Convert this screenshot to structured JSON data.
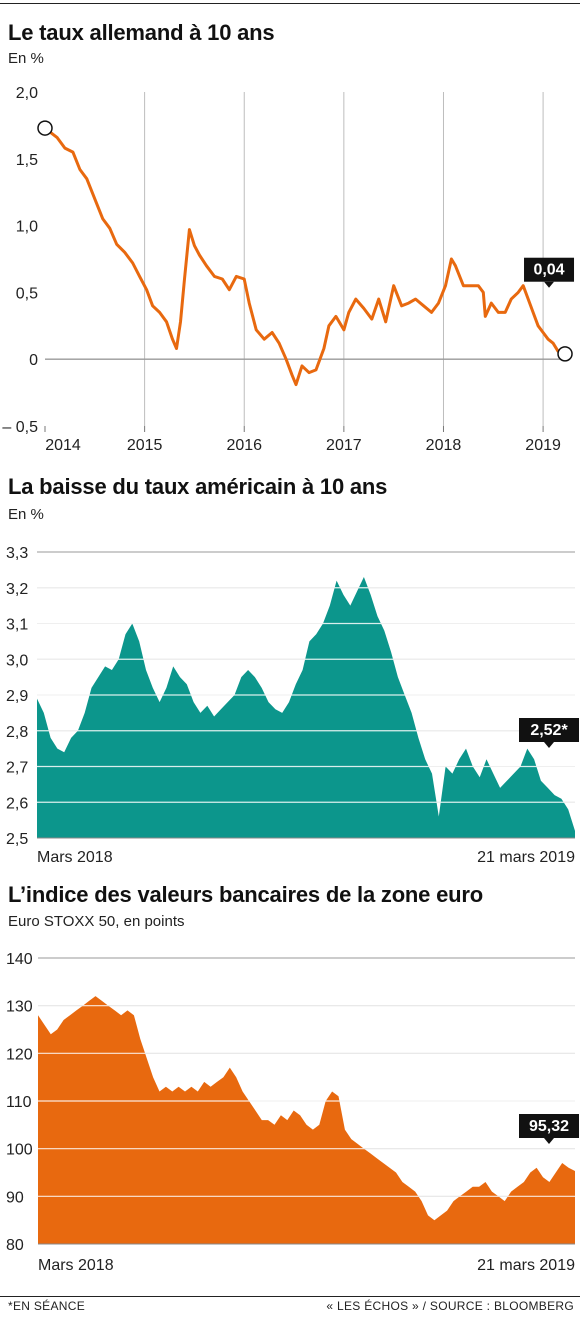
{
  "footer": {
    "note": "*EN SÉANCE",
    "source": "« LES ÉCHOS » / SOURCE : BLOOMBERG"
  },
  "colors": {
    "orange": "#e8690f",
    "teal": "#0c968c",
    "axis": "#999999",
    "grid": "#ffffff",
    "callout": "#111111"
  },
  "chart_data": [
    {
      "type": "line",
      "title": "Le taux allemand à 10 ans",
      "subtitle": "En %",
      "color": "#e8690f",
      "ylim": [
        -0.5,
        2.0
      ],
      "y_ticks": [
        2.0,
        1.5,
        1.0,
        0.5,
        0,
        -0.5
      ],
      "y_tick_labels": [
        "2,0",
        "1,5",
        "1,0",
        "0,5",
        "0",
        "– 0,5"
      ],
      "x_range": [
        2014.0,
        2019.25
      ],
      "x_ticks": [
        2014,
        2015,
        2016,
        2017,
        2018,
        2019
      ],
      "x_tick_labels": [
        "2014",
        "2015",
        "2016",
        "2017",
        "2018",
        "2019"
      ],
      "grid": "vertical lines at years, horizontal line at 0",
      "start_marker": true,
      "end_marker": true,
      "callout": "0,04",
      "points": [
        [
          2014.0,
          1.73
        ],
        [
          2014.05,
          1.7
        ],
        [
          2014.12,
          1.66
        ],
        [
          2014.2,
          1.58
        ],
        [
          2014.28,
          1.55
        ],
        [
          2014.35,
          1.42
        ],
        [
          2014.42,
          1.35
        ],
        [
          2014.5,
          1.2
        ],
        [
          2014.58,
          1.05
        ],
        [
          2014.65,
          0.98
        ],
        [
          2014.72,
          0.86
        ],
        [
          2014.8,
          0.8
        ],
        [
          2014.88,
          0.72
        ],
        [
          2014.95,
          0.62
        ],
        [
          2015.02,
          0.52
        ],
        [
          2015.08,
          0.4
        ],
        [
          2015.15,
          0.35
        ],
        [
          2015.22,
          0.28
        ],
        [
          2015.28,
          0.15
        ],
        [
          2015.32,
          0.08
        ],
        [
          2015.36,
          0.28
        ],
        [
          2015.4,
          0.6
        ],
        [
          2015.45,
          0.97
        ],
        [
          2015.5,
          0.85
        ],
        [
          2015.55,
          0.78
        ],
        [
          2015.62,
          0.7
        ],
        [
          2015.7,
          0.62
        ],
        [
          2015.78,
          0.6
        ],
        [
          2015.85,
          0.52
        ],
        [
          2015.92,
          0.62
        ],
        [
          2016.0,
          0.6
        ],
        [
          2016.05,
          0.42
        ],
        [
          2016.12,
          0.22
        ],
        [
          2016.2,
          0.15
        ],
        [
          2016.28,
          0.2
        ],
        [
          2016.35,
          0.12
        ],
        [
          2016.42,
          0.0
        ],
        [
          2016.48,
          -0.12
        ],
        [
          2016.52,
          -0.19
        ],
        [
          2016.58,
          -0.05
        ],
        [
          2016.65,
          -0.1
        ],
        [
          2016.72,
          -0.08
        ],
        [
          2016.8,
          0.08
        ],
        [
          2016.85,
          0.25
        ],
        [
          2016.92,
          0.32
        ],
        [
          2017.0,
          0.22
        ],
        [
          2017.05,
          0.35
        ],
        [
          2017.12,
          0.45
        ],
        [
          2017.2,
          0.38
        ],
        [
          2017.28,
          0.3
        ],
        [
          2017.35,
          0.45
        ],
        [
          2017.42,
          0.28
        ],
        [
          2017.5,
          0.55
        ],
        [
          2017.58,
          0.4
        ],
        [
          2017.65,
          0.42
        ],
        [
          2017.72,
          0.45
        ],
        [
          2017.8,
          0.4
        ],
        [
          2017.88,
          0.35
        ],
        [
          2017.95,
          0.42
        ],
        [
          2018.02,
          0.55
        ],
        [
          2018.08,
          0.75
        ],
        [
          2018.12,
          0.7
        ],
        [
          2018.2,
          0.55
        ],
        [
          2018.28,
          0.55
        ],
        [
          2018.35,
          0.55
        ],
        [
          2018.4,
          0.5
        ],
        [
          2018.42,
          0.32
        ],
        [
          2018.48,
          0.42
        ],
        [
          2018.55,
          0.35
        ],
        [
          2018.62,
          0.35
        ],
        [
          2018.68,
          0.45
        ],
        [
          2018.75,
          0.5
        ],
        [
          2018.8,
          0.55
        ],
        [
          2018.85,
          0.45
        ],
        [
          2018.9,
          0.35
        ],
        [
          2018.95,
          0.25
        ],
        [
          2019.0,
          0.2
        ],
        [
          2019.05,
          0.15
        ],
        [
          2019.1,
          0.12
        ],
        [
          2019.15,
          0.06
        ],
        [
          2019.2,
          0.04
        ]
      ]
    },
    {
      "type": "area",
      "title": "La baisse du taux américain à 10 ans",
      "subtitle": "En %",
      "color": "#0c968c",
      "ylim": [
        2.5,
        3.3
      ],
      "y_ticks": [
        3.3,
        3.2,
        3.1,
        3.0,
        2.9,
        2.8,
        2.7,
        2.6,
        2.5
      ],
      "y_tick_labels": [
        "3,3",
        "3,2",
        "3,1",
        "3,0",
        "2,9",
        "2,8",
        "2,7",
        "2,6",
        "2,5"
      ],
      "x_start_label": "Mars 2018",
      "x_end_label": "21 mars 2019",
      "grid": "horizontal white lines",
      "callout": "2,52*",
      "values": [
        2.89,
        2.85,
        2.78,
        2.75,
        2.74,
        2.78,
        2.8,
        2.85,
        2.92,
        2.95,
        2.98,
        2.97,
        3.0,
        3.07,
        3.1,
        3.05,
        2.97,
        2.92,
        2.88,
        2.92,
        2.98,
        2.95,
        2.93,
        2.88,
        2.85,
        2.87,
        2.84,
        2.86,
        2.88,
        2.9,
        2.95,
        2.97,
        2.95,
        2.92,
        2.88,
        2.86,
        2.85,
        2.88,
        2.93,
        2.97,
        3.05,
        3.07,
        3.1,
        3.15,
        3.22,
        3.18,
        3.15,
        3.19,
        3.23,
        3.18,
        3.12,
        3.08,
        3.02,
        2.95,
        2.9,
        2.85,
        2.78,
        2.72,
        2.68,
        2.56,
        2.7,
        2.68,
        2.72,
        2.75,
        2.7,
        2.67,
        2.72,
        2.68,
        2.64,
        2.66,
        2.68,
        2.7,
        2.75,
        2.72,
        2.66,
        2.64,
        2.62,
        2.61,
        2.58,
        2.52
      ]
    },
    {
      "type": "area",
      "title": "L’indice des valeurs bancaires de la zone euro",
      "subtitle": "Euro STOXX 50, en points",
      "color": "#e8690f",
      "ylim": [
        80,
        140
      ],
      "y_ticks": [
        140,
        130,
        120,
        110,
        100,
        90,
        80
      ],
      "y_tick_labels": [
        "140",
        "130",
        "120",
        "110",
        "100",
        "90",
        "80"
      ],
      "x_start_label": "Mars 2018",
      "x_end_label": "21 mars 2019",
      "grid": "horizontal white lines",
      "callout": "95,32",
      "values": [
        128,
        126,
        124,
        125,
        127,
        128,
        129,
        130,
        131,
        132,
        131,
        130,
        129,
        128,
        129,
        128,
        123,
        119,
        115,
        112,
        113,
        112,
        113,
        112,
        113,
        112,
        114,
        113,
        114,
        115,
        117,
        115,
        112,
        110,
        108,
        106,
        106,
        105,
        107,
        106,
        108,
        107,
        105,
        104,
        105,
        110,
        112,
        111,
        104,
        102,
        101,
        100,
        99,
        98,
        97,
        96,
        95,
        93,
        92,
        91,
        89,
        86,
        85,
        86,
        87,
        89,
        90,
        91,
        92,
        92,
        93,
        91,
        90,
        89,
        91,
        92,
        93,
        95,
        96,
        94,
        93,
        95,
        97,
        96,
        95.32
      ]
    }
  ]
}
